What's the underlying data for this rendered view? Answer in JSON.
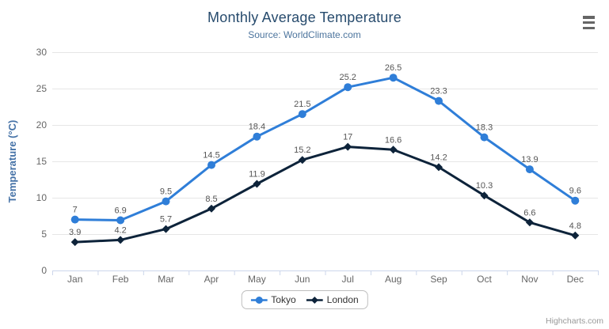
{
  "chart_data": {
    "type": "line",
    "title": "Monthly Average Temperature",
    "subtitle": "Source: WorldClimate.com",
    "xlabel": "",
    "ylabel": "Temperature (°C)",
    "categories": [
      "Jan",
      "Feb",
      "Mar",
      "Apr",
      "May",
      "Jun",
      "Jul",
      "Aug",
      "Sep",
      "Oct",
      "Nov",
      "Dec"
    ],
    "ylim": [
      0,
      30
    ],
    "yticks": [
      0,
      5,
      10,
      15,
      20,
      25,
      30
    ],
    "grid": true,
    "legend_position": "bottom",
    "data_labels": true,
    "series": [
      {
        "name": "Tokyo",
        "color": "#2f7ed8",
        "marker": "circle",
        "values": [
          7,
          6.9,
          9.5,
          14.5,
          18.4,
          21.5,
          25.2,
          26.5,
          23.3,
          18.3,
          13.9,
          9.6
        ]
      },
      {
        "name": "London",
        "color": "#0d233a",
        "marker": "diamond",
        "values": [
          3.9,
          4.2,
          5.7,
          8.5,
          11.9,
          15.2,
          17,
          16.6,
          14.2,
          10.3,
          6.6,
          4.8
        ]
      }
    ]
  },
  "export_menu": {
    "icon": "hamburger-menu-icon"
  },
  "credits": {
    "label": "Highcharts.com"
  },
  "theme": {
    "background": "#ffffff",
    "title_color": "#274b6d",
    "subtitle_color": "#4d759e",
    "axis_title_color": "#4572a7",
    "axis_label_color": "#666666",
    "data_label_color": "#555555",
    "grid_color": "#e6e6e6",
    "axis_line_color": "#ccd6eb",
    "legend_text_color": "#333333",
    "legend_border_color": "#bfbfbf",
    "credits_color": "#999999",
    "menu_icon_color": "#666666"
  }
}
